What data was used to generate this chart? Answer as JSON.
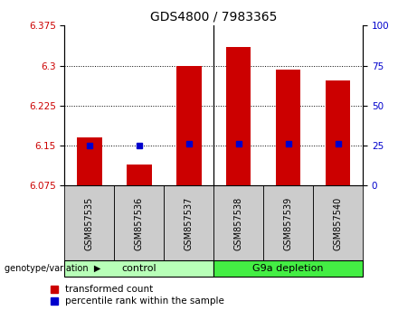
{
  "title": "GDS4800 / 7983365",
  "samples": [
    "GSM857535",
    "GSM857536",
    "GSM857537",
    "GSM857538",
    "GSM857539",
    "GSM857540"
  ],
  "transformed_counts": [
    6.165,
    6.115,
    6.3,
    6.335,
    6.293,
    6.272
  ],
  "percentile_y_values": [
    6.15,
    6.15,
    6.153,
    6.153,
    6.153,
    6.153
  ],
  "groups": [
    {
      "label": "control",
      "n": 3,
      "color": "#b8ffb8"
    },
    {
      "label": "G9a depletion",
      "n": 3,
      "color": "#44ee44"
    }
  ],
  "ylim_left": [
    6.075,
    6.375
  ],
  "ylim_right": [
    0,
    100
  ],
  "yticks_left": [
    6.075,
    6.15,
    6.225,
    6.3,
    6.375
  ],
  "yticks_right": [
    0,
    25,
    50,
    75,
    100
  ],
  "bar_color": "#CC0000",
  "dot_color": "#0000CC",
  "bar_bottom": 6.075,
  "background_color": "#ffffff",
  "sample_box_color": "#cccccc",
  "legend_items": [
    {
      "label": "transformed count",
      "color": "#CC0000"
    },
    {
      "label": "percentile rank within the sample",
      "color": "#0000CC"
    }
  ],
  "genotype_label": "genotype/variation",
  "arrow_char": "▶"
}
